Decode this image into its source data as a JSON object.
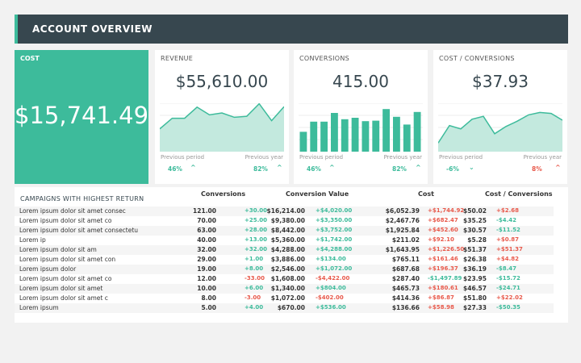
{
  "header": {
    "title": "ACCOUNT OVERVIEW"
  },
  "cost": {
    "label": "COST",
    "value": "$15,741.49"
  },
  "colors": {
    "accent": "#3dbb9b",
    "header": "#37474f",
    "negative": "#e8594b",
    "fill": "#c3e9de"
  },
  "cards": [
    {
      "label": "REVENUE",
      "value": "$55,610.00",
      "chart_type": "area",
      "series": [
        47,
        69,
        69,
        92,
        76,
        80,
        71,
        73,
        99,
        64,
        93
      ],
      "prev_period_label": "Previous period",
      "prev_period": "46%",
      "prev_period_dir": "up",
      "prev_period_good": true,
      "prev_year_label": "Previous year",
      "prev_year": "82%",
      "prev_year_dir": "up",
      "prev_year_good": true
    },
    {
      "label": "CONVERSIONS",
      "value": "415.00",
      "chart_type": "bar",
      "series": [
        41,
        62,
        62,
        80,
        67,
        70,
        63,
        64,
        88,
        72,
        56,
        82
      ],
      "prev_period_label": "Previous period",
      "prev_period": "46%",
      "prev_period_dir": "up",
      "prev_period_good": true,
      "prev_year_label": "Previous year",
      "prev_year": "82%",
      "prev_year_dir": "up",
      "prev_year_good": true
    },
    {
      "label": "COST / CONVERSIONS",
      "value": "$37.93",
      "chart_type": "area",
      "series": [
        18,
        54,
        47,
        67,
        73,
        37,
        52,
        63,
        76,
        81,
        79,
        65
      ],
      "prev_period_label": "Previous period",
      "prev_period": "-6%",
      "prev_period_dir": "down",
      "prev_period_good": true,
      "prev_year_label": "Previous year",
      "prev_year": "8%",
      "prev_year_dir": "up",
      "prev_year_good": false
    }
  ],
  "table": {
    "title": "CAMPAIGNS WITH HIGHEST RETURN",
    "headers": [
      "Conversions",
      "Conversion Value",
      "Cost",
      "Cost / Conversions"
    ],
    "rows": [
      [
        "Lorem ipsum dolor sit amet consec",
        "121.00",
        "+30.00",
        "$16,214.00",
        "+$4,020.00",
        "$6,052.39",
        "+$1,744.92",
        "$50.02",
        "+$2.68"
      ],
      [
        "Lorem ipsum dolor sit amet co",
        "70.00",
        "+25.00",
        "$9,380.00",
        "+$3,350.00",
        "$2,467.76",
        "+$682.47",
        "$35.25",
        "-$4.42"
      ],
      [
        "Lorem ipsum dolor sit amet consectetu",
        "63.00",
        "+28.00",
        "$8,442.00",
        "+$3,752.00",
        "$1,925.84",
        "+$452.60",
        "$30.57",
        "-$11.52"
      ],
      [
        "Lorem ip",
        "40.00",
        "+13.00",
        "$5,360.00",
        "+$1,742.00",
        "$211.02",
        "+$92.10",
        "$5.28",
        "+$0.87"
      ],
      [
        "Lorem ipsum dolor sit am",
        "32.00",
        "+32.00",
        "$4,288.00",
        "+$4,288.00",
        "$1,643.95",
        "+$1,226.50",
        "$51.37",
        "+$51.37"
      ],
      [
        "Lorem ipsum dolor sit amet con",
        "29.00",
        "+1.00",
        "$3,886.00",
        "+$134.00",
        "$765.11",
        "+$161.46",
        "$26.38",
        "+$4.82"
      ],
      [
        "Lorem ipsum dolor",
        "19.00",
        "+8.00",
        "$2,546.00",
        "+$1,072.00",
        "$687.68",
        "+$196.37",
        "$36.19",
        "-$8.47"
      ],
      [
        "Lorem ipsum dolor sit amet co",
        "12.00",
        "-33.00",
        "$1,608.00",
        "-$4,422.00",
        "$287.40",
        "-$1,497.89",
        "$23.95",
        "-$15.72"
      ],
      [
        "Lorem ipsum dolor sit amet",
        "10.00",
        "+6.00",
        "$1,340.00",
        "+$804.00",
        "$465.73",
        "+$180.61",
        "$46.57",
        "-$24.71"
      ],
      [
        "Lorem ipsum dolor sit amet c",
        "8.00",
        "-3.00",
        "$1,072.00",
        "-$402.00",
        "$414.36",
        "+$86.87",
        "$51.80",
        "+$22.02"
      ],
      [
        "Lorem ipsum",
        "5.00",
        "+4.00",
        "$670.00",
        "+$536.00",
        "$136.66",
        "+$58.98",
        "$27.33",
        "-$50.35"
      ]
    ]
  }
}
